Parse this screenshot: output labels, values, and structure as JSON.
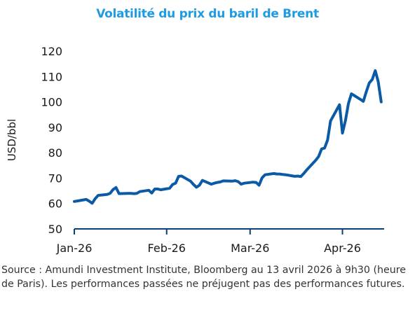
{
  "colors": {
    "title": "#1e9be3",
    "line": "#0b5aa6",
    "axis": "#0b3f7a"
  },
  "source": "Source : Amundi Investment Institute, Bloomberg au 13 avril 2026 à 9h30 (heure de Paris). Les performances passées ne préjugent pas des performances futures.",
  "chart_data": {
    "type": "line",
    "title": "Volatilité du prix du baril de Brent",
    "xlabel": "",
    "ylabel": "USD/bbl",
    "ylim": [
      50,
      120
    ],
    "yticks": [
      50,
      60,
      70,
      80,
      90,
      100,
      110,
      120
    ],
    "xlim": [
      "2026-01-01",
      "2026-04-15"
    ],
    "xticks": [
      {
        "date": "2026-01-01",
        "label": "Jan-26"
      },
      {
        "date": "2026-02-01",
        "label": "Feb-26"
      },
      {
        "date": "2026-03-01",
        "label": "Mar-26"
      },
      {
        "date": "2026-04-01",
        "label": "Apr-26"
      }
    ],
    "grid": false,
    "series": [
      {
        "name": "",
        "points": [
          [
            "2026-01-01",
            60.8
          ],
          [
            "2026-01-02",
            61.0
          ],
          [
            "2026-01-05",
            61.6
          ],
          [
            "2026-01-06",
            60.9
          ],
          [
            "2026-01-07",
            60.1
          ],
          [
            "2026-01-08",
            61.9
          ],
          [
            "2026-01-09",
            63.2
          ],
          [
            "2026-01-12",
            63.6
          ],
          [
            "2026-01-13",
            64.0
          ],
          [
            "2026-01-14",
            65.5
          ],
          [
            "2026-01-15",
            66.3
          ],
          [
            "2026-01-16",
            63.9
          ],
          [
            "2026-01-19",
            64.0
          ],
          [
            "2026-01-20",
            64.0
          ],
          [
            "2026-01-21",
            63.9
          ],
          [
            "2026-01-22",
            64.0
          ],
          [
            "2026-01-23",
            64.7
          ],
          [
            "2026-01-26",
            65.2
          ],
          [
            "2026-01-27",
            64.1
          ],
          [
            "2026-01-28",
            65.7
          ],
          [
            "2026-01-29",
            65.7
          ],
          [
            "2026-01-30",
            65.4
          ],
          [
            "2026-02-02",
            66.0
          ],
          [
            "2026-02-03",
            67.5
          ],
          [
            "2026-02-04",
            68.0
          ],
          [
            "2026-02-05",
            70.7
          ],
          [
            "2026-02-06",
            70.8
          ],
          [
            "2026-02-09",
            68.8
          ],
          [
            "2026-02-10",
            67.5
          ],
          [
            "2026-02-11",
            66.4
          ],
          [
            "2026-02-12",
            67.2
          ],
          [
            "2026-02-13",
            69.1
          ],
          [
            "2026-02-16",
            67.6
          ],
          [
            "2026-02-17",
            68.0
          ],
          [
            "2026-02-18",
            68.3
          ],
          [
            "2026-02-19",
            68.5
          ],
          [
            "2026-02-20",
            68.9
          ],
          [
            "2026-02-23",
            68.8
          ],
          [
            "2026-02-24",
            69.0
          ],
          [
            "2026-02-25",
            68.6
          ],
          [
            "2026-02-26",
            67.6
          ],
          [
            "2026-02-27",
            68.0
          ],
          [
            "2026-03-02",
            68.4
          ],
          [
            "2026-03-03",
            68.3
          ],
          [
            "2026-03-04",
            67.2
          ],
          [
            "2026-03-05",
            70.1
          ],
          [
            "2026-03-06",
            71.3
          ],
          [
            "2026-03-09",
            71.8
          ],
          [
            "2026-03-10",
            71.6
          ],
          [
            "2026-03-11",
            71.6
          ],
          [
            "2026-03-12",
            71.4
          ],
          [
            "2026-03-13",
            71.3
          ],
          [
            "2026-03-16",
            70.7
          ],
          [
            "2026-03-17",
            70.8
          ],
          [
            "2026-03-18",
            70.6
          ],
          [
            "2026-03-19",
            71.8
          ],
          [
            "2026-03-20",
            73.2
          ],
          [
            "2026-03-23",
            77.0
          ],
          [
            "2026-03-24",
            78.5
          ],
          [
            "2026-03-25",
            81.5
          ],
          [
            "2026-03-26",
            81.8
          ],
          [
            "2026-03-27",
            85.0
          ],
          [
            "2026-03-28",
            92.5
          ],
          [
            "2026-03-31",
            98.9
          ],
          [
            "2026-04-01",
            87.7
          ],
          [
            "2026-04-02",
            92.7
          ],
          [
            "2026-04-03",
            99.3
          ],
          [
            "2026-04-04",
            103.2
          ],
          [
            "2026-04-07",
            101.0
          ],
          [
            "2026-04-08",
            100.2
          ],
          [
            "2026-04-09",
            104.0
          ],
          [
            "2026-04-10",
            107.5
          ],
          [
            "2026-04-11",
            108.8
          ],
          [
            "2026-04-12",
            112.3
          ],
          [
            "2026-04-13",
            108.0
          ],
          [
            "2026-04-14",
            100.0
          ]
        ]
      }
    ]
  }
}
